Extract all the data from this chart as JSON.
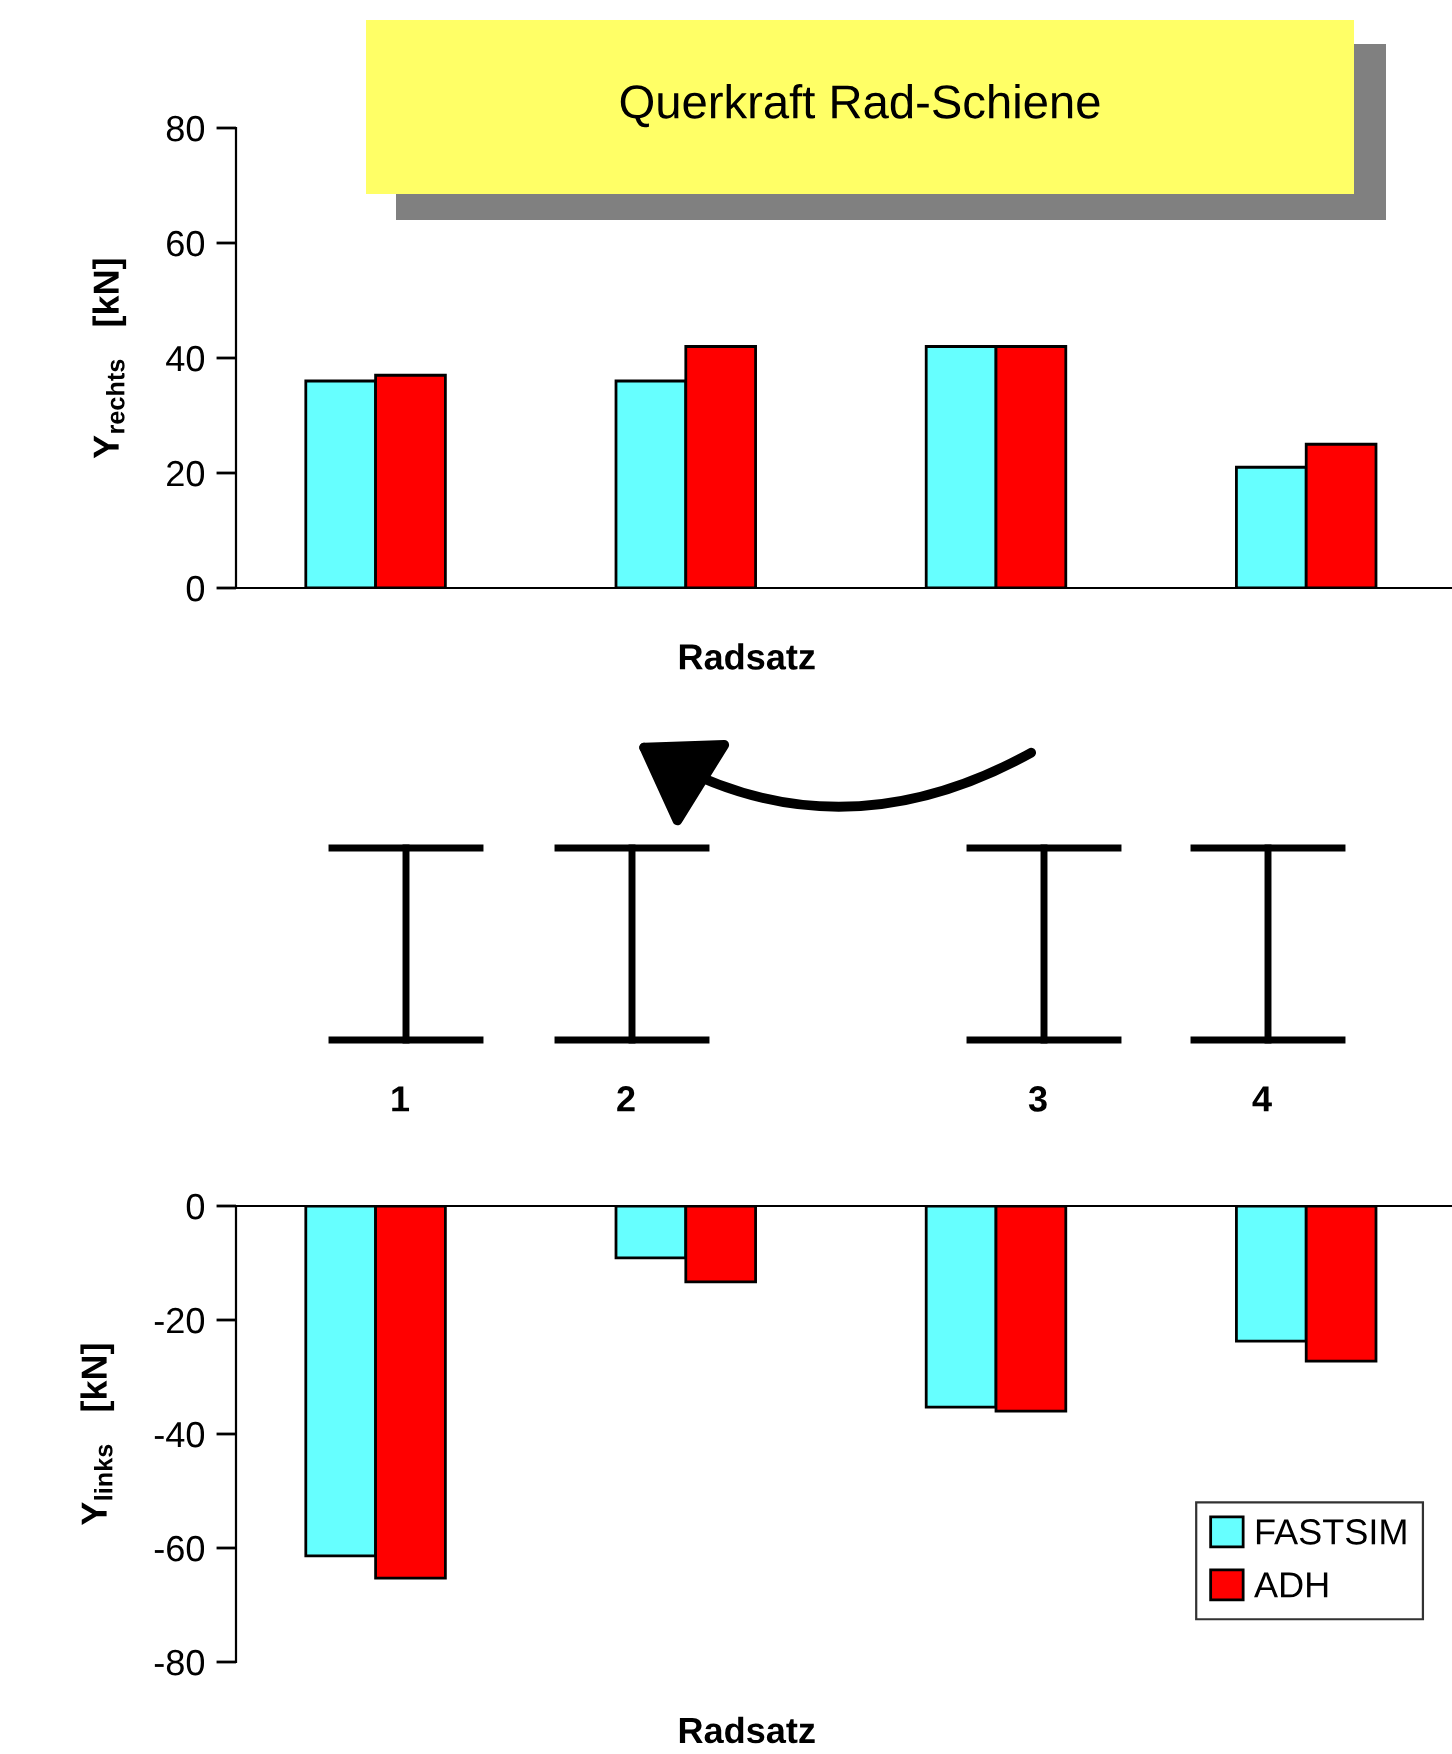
{
  "chart_data": [
    {
      "type": "bar",
      "title": "Querkraft Rad-Schiene",
      "xlabel": "Radsatz",
      "ylabel": "Y$_{rechts}$   [kN]",
      "categories": [
        null,
        null,
        null,
        null
      ],
      "series": [
        {
          "color": "#66ffff",
          "values": [
            36,
            36,
            42,
            21
          ]
        },
        {
          "color": "#ff0000",
          "values": [
            37,
            42,
            42,
            25
          ]
        }
      ],
      "ylim": [
        0,
        80
      ],
      "yticks": [
        0,
        20,
        40,
        60,
        80
      ],
      "grid": false,
      "legend": false,
      "tick_labels": "y"
    },
    {
      "type": "bar",
      "xlabel": "Radsatz",
      "ylabel": "Y$_{links}$   [kN]",
      "categories": [
        null,
        null,
        null,
        null
      ],
      "series": [
        {
          "name": "FASTSIM",
          "color": "#66ffff",
          "values": [
            -61.4,
            -9.1,
            -35.3,
            -23.7
          ]
        },
        {
          "name": "ADH",
          "color": "#ff0000",
          "values": [
            -65.3,
            -13.3,
            -36,
            -27.2
          ]
        }
      ],
      "ylim": [
        -80,
        0
      ],
      "yticks": [
        -80,
        -60,
        -40,
        -20,
        0
      ],
      "grid": false,
      "legend": "bottom right",
      "tick_labels": "y",
      "annotations": [
        "1",
        "2",
        "3",
        "4"
      ]
    }
  ]
}
